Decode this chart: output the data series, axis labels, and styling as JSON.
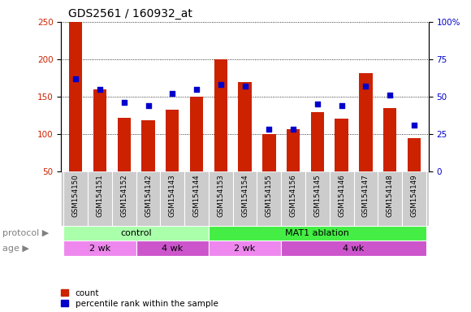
{
  "title": "GDS2561 / 160932_at",
  "samples": [
    "GSM154150",
    "GSM154151",
    "GSM154152",
    "GSM154142",
    "GSM154143",
    "GSM154144",
    "GSM154153",
    "GSM154154",
    "GSM154155",
    "GSM154156",
    "GSM154145",
    "GSM154146",
    "GSM154147",
    "GSM154148",
    "GSM154149"
  ],
  "count_values": [
    250,
    160,
    122,
    118,
    133,
    150,
    200,
    170,
    100,
    107,
    129,
    121,
    181,
    135,
    95
  ],
  "percentile_values": [
    62,
    55,
    46,
    44,
    52,
    55,
    58,
    57,
    28,
    28,
    45,
    44,
    57,
    51,
    31
  ],
  "ylim_left": [
    50,
    250
  ],
  "ylim_right": [
    0,
    100
  ],
  "yticks_left": [
    50,
    100,
    150,
    200,
    250
  ],
  "yticks_right": [
    0,
    25,
    50,
    75,
    100
  ],
  "bar_color": "#CC2200",
  "dot_color": "#0000CC",
  "bg_color": "#FFFFFF",
  "xtick_bg_color": "#CCCCCC",
  "protocol_groups": [
    {
      "label": "control",
      "start": 0,
      "end": 6,
      "color": "#AAFFAA"
    },
    {
      "label": "MAT1 ablation",
      "start": 6,
      "end": 15,
      "color": "#44EE44"
    }
  ],
  "age_groups": [
    {
      "label": "2 wk",
      "start": 0,
      "end": 3,
      "color": "#EE88EE"
    },
    {
      "label": "4 wk",
      "start": 3,
      "end": 6,
      "color": "#CC55CC"
    },
    {
      "label": "2 wk",
      "start": 6,
      "end": 9,
      "color": "#EE88EE"
    },
    {
      "label": "4 wk",
      "start": 9,
      "end": 15,
      "color": "#CC55CC"
    }
  ],
  "legend_count_label": "count",
  "legend_pct_label": "percentile rank within the sample",
  "protocol_label": "protocol",
  "age_label": "age",
  "title_fontsize": 10,
  "tick_fontsize": 7.5,
  "label_fontsize": 8,
  "bar_width": 0.55
}
